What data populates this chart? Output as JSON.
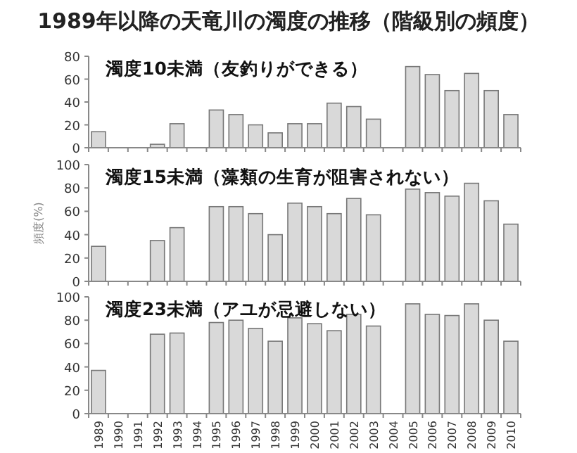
{
  "chart_data": [
    {
      "type": "bar",
      "title": "1989年以降の天竜川の濁度の推移（階級別の頻度）",
      "annotations": [
        "濁度10未満（友釣りができる）"
      ],
      "categories": [
        "1989",
        "1990",
        "1991",
        "1992",
        "1993",
        "1994",
        "1995",
        "1996",
        "1997",
        "1998",
        "1999",
        "2000",
        "2001",
        "2002",
        "2003",
        "2004",
        "2005",
        "2006",
        "2007",
        "2008",
        "2009",
        "2010"
      ],
      "values": [
        14,
        null,
        null,
        3,
        21,
        null,
        33,
        29,
        20,
        13,
        21,
        21,
        39,
        36,
        25,
        null,
        71,
        64,
        50,
        65,
        50,
        29
      ],
      "color": "#d9d9d9",
      "ylim": [
        0,
        80
      ],
      "yticks": [
        0,
        20,
        40,
        60,
        80
      ],
      "tick_labels": "y",
      "grid": false
    },
    {
      "type": "bar",
      "ylabel": "頻度(%)",
      "annotations": [
        "濁度15未満（藻類の生育が阻害されない）"
      ],
      "categories": [
        "1989",
        "1990",
        "1991",
        "1992",
        "1993",
        "1994",
        "1995",
        "1996",
        "1997",
        "1998",
        "1999",
        "2000",
        "2001",
        "2002",
        "2003",
        "2004",
        "2005",
        "2006",
        "2007",
        "2008",
        "2009",
        "2010"
      ],
      "values": [
        30,
        null,
        null,
        35,
        46,
        null,
        64,
        64,
        58,
        40,
        67,
        64,
        58,
        71,
        57,
        null,
        79,
        76,
        73,
        84,
        69,
        49
      ],
      "color": "#d9d9d9",
      "ylim": [
        0,
        100
      ],
      "yticks": [
        0,
        20,
        40,
        60,
        80,
        100
      ],
      "tick_labels": "y",
      "grid": false
    },
    {
      "type": "bar",
      "annotations": [
        "濁度23未満（アユが忌避しない）"
      ],
      "categories": [
        "1989",
        "1990",
        "1991",
        "1992",
        "1993",
        "1994",
        "1995",
        "1996",
        "1997",
        "1998",
        "1999",
        "2000",
        "2001",
        "2002",
        "2003",
        "2004",
        "2005",
        "2006",
        "2007",
        "2008",
        "2009",
        "2010"
      ],
      "values": [
        37,
        null,
        null,
        68,
        69,
        null,
        78,
        80,
        73,
        62,
        82,
        77,
        71,
        85,
        75,
        null,
        94,
        85,
        84,
        94,
        80,
        62
      ],
      "color": "#d9d9d9",
      "ylim": [
        0,
        100
      ],
      "yticks": [
        0,
        20,
        40,
        60,
        80,
        100
      ],
      "grid": false
    }
  ]
}
